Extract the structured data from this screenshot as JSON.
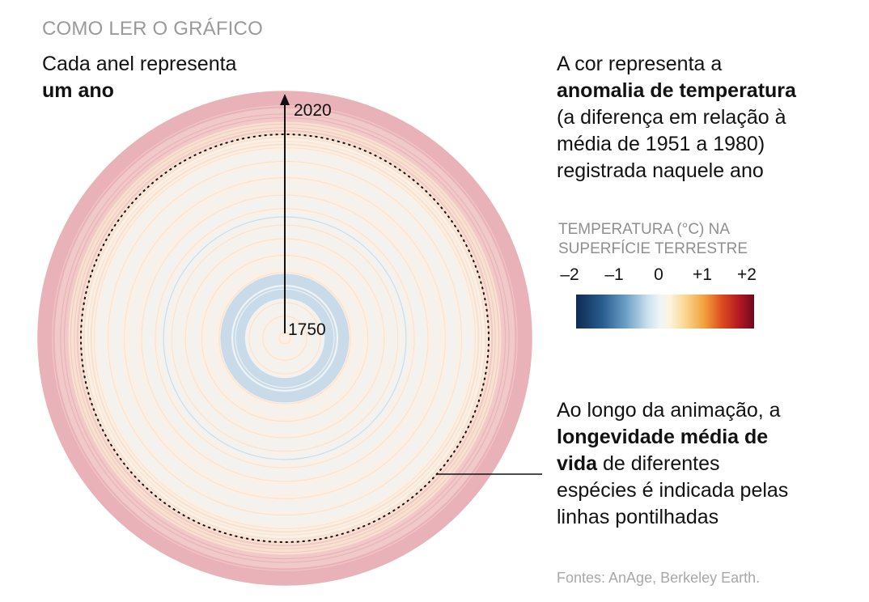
{
  "kicker": "COMO LER O GRÁFICO",
  "note_ring": {
    "line1": "Cada anel representa",
    "line2": "um ano"
  },
  "note_color": {
    "line1": "A cor representa a",
    "line2_bold": "anomalia de temperatura",
    "line3": "(a diferença em relação à",
    "line4": "média de 1951 a 1980)",
    "line5": "registrada naquele ano"
  },
  "legend": {
    "title_line1": "TEMPERATURA (°C) NA",
    "title_line2": "SUPERFÍCIE TERRESTRE",
    "ticks": [
      "–2",
      "–1",
      "0",
      "+1",
      "+2"
    ]
  },
  "note_life": {
    "line1": "Ao longo da animação, a",
    "line2_bold": "longevidade média de",
    "line3_bold": "vida",
    "line3_rest": " de diferentes",
    "line4": "espécies é indicada pelas",
    "line5": "linhas pontilhadas"
  },
  "axis": {
    "start_year": "1750",
    "end_year": "2020"
  },
  "source": "Fontes: AnAge, Berkeley Earth.",
  "colors": {
    "cold_deep": "#0d2b52",
    "neutral": "#eef5f8",
    "warm": "#f2a13d",
    "hot_deep": "#6e0a1c"
  }
}
